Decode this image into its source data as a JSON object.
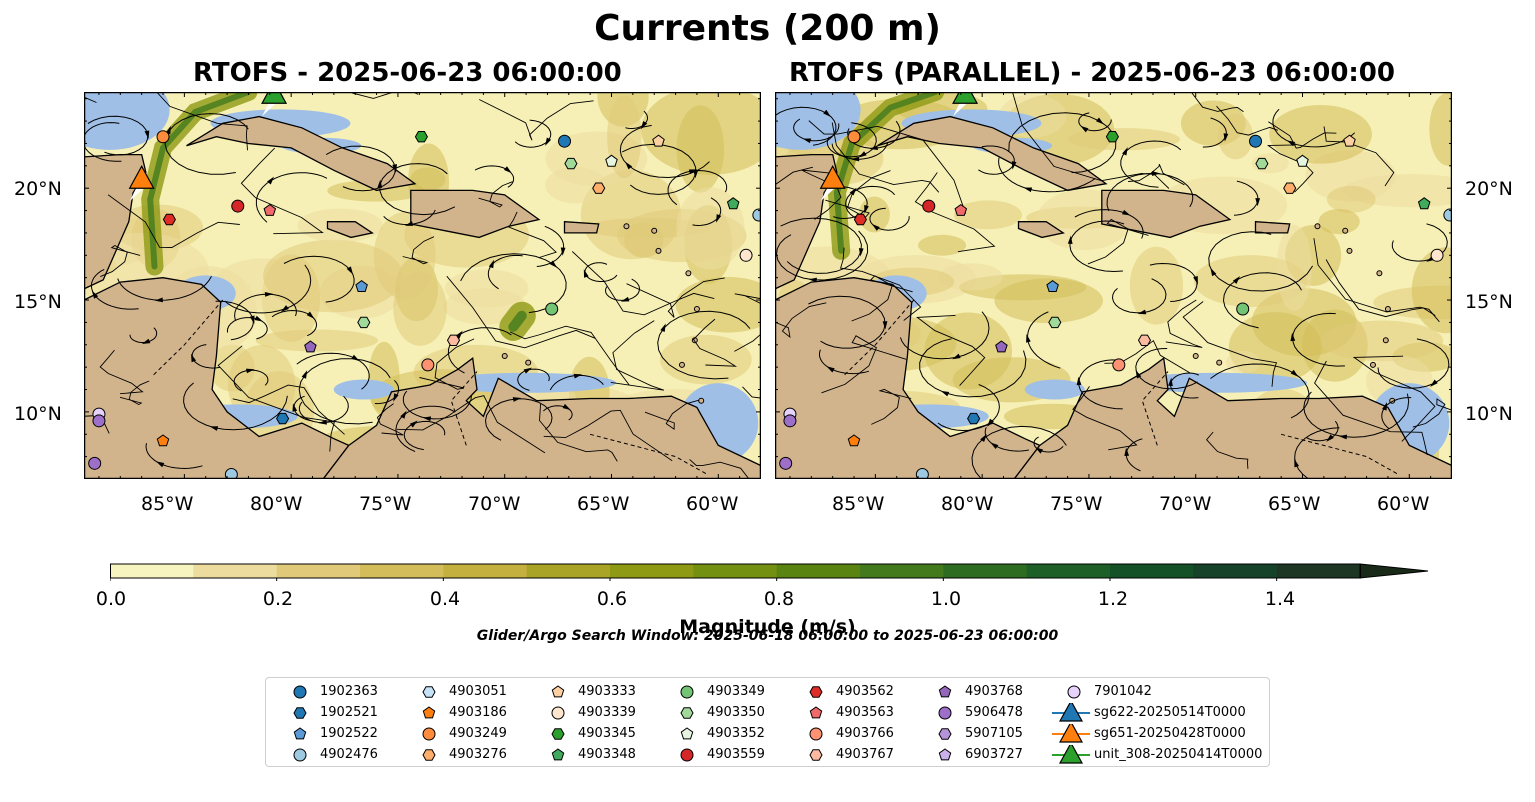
{
  "figure": {
    "title": "Currents (200 m)",
    "panels": [
      {
        "title": "RTOFS - 2025-06-23 06:00:00"
      },
      {
        "title": "RTOFS (PARALLEL) - 2025-06-23 06:00:00"
      }
    ],
    "lon_labels": [
      "85°W",
      "80°W",
      "75°W",
      "70°W",
      "65°W",
      "60°W"
    ],
    "lon_values": [
      -85,
      -80,
      -75,
      -70,
      -65,
      -60
    ],
    "lat_labels": [
      "20°N",
      "15°N",
      "10°N"
    ],
    "lat_values": [
      20,
      15,
      10
    ],
    "extent": {
      "lon": [
        -89.7,
        -58.0
      ],
      "lat": [
        7.0,
        24.3
      ]
    },
    "colors": {
      "land": "#d2b48c",
      "water_shallow": "#9fbfe6",
      "low_speed": "#f6f0b6",
      "high_speed": "#1f6f1f"
    },
    "search_window": "Glider/Argo Search Window: 2025-06-18 06:00:00 to 2025-06-23 06:00:00"
  },
  "colorbar": {
    "label": "Magnitude (m/s)",
    "ticks": [
      "0.0",
      "0.2",
      "0.4",
      "0.6",
      "0.8",
      "1.0",
      "1.2",
      "1.4"
    ],
    "tick_values": [
      0.0,
      0.2,
      0.4,
      0.6,
      0.8,
      1.0,
      1.2,
      1.4
    ],
    "range": [
      0.0,
      1.5
    ],
    "extend": "max",
    "colors": [
      "#f8f4bf",
      "#ecdd9e",
      "#e0ca7a",
      "#d3bd5a",
      "#c3b03f",
      "#a9a326",
      "#8f9a14",
      "#739010",
      "#5a8412",
      "#427a1d",
      "#2e6c22",
      "#1d5f27",
      "#155126",
      "#17422a",
      "#1d3624",
      "#1a2a19"
    ]
  },
  "legend": {
    "items": [
      {
        "label": "1902363",
        "marker": "circle",
        "color": "#1f77b4"
      },
      {
        "label": "1902521",
        "marker": "hexagon",
        "color": "#1f77b4"
      },
      {
        "label": "1902522",
        "marker": "pentagon",
        "color": "#5b9bd5"
      },
      {
        "label": "4902476",
        "marker": "circle",
        "color": "#9ecae1"
      },
      {
        "label": "4903051",
        "marker": "hexagon",
        "color": "#c6e2f7"
      },
      {
        "label": "4903186",
        "marker": "pentagon",
        "color": "#ff7f0e"
      },
      {
        "label": "4903249",
        "marker": "circle",
        "color": "#fd8d3c"
      },
      {
        "label": "4903276",
        "marker": "hexagon",
        "color": "#fdae6b"
      },
      {
        "label": "4903333",
        "marker": "pentagon",
        "color": "#fdd0a2"
      },
      {
        "label": "4903339",
        "marker": "circle",
        "color": "#fee6ce"
      },
      {
        "label": "4903345",
        "marker": "hexagon",
        "color": "#2ca02c"
      },
      {
        "label": "4903348",
        "marker": "pentagon",
        "color": "#41ab5d"
      },
      {
        "label": "4903349",
        "marker": "circle",
        "color": "#74c476"
      },
      {
        "label": "4903350",
        "marker": "hexagon",
        "color": "#a1d99b"
      },
      {
        "label": "4903352",
        "marker": "pentagon",
        "color": "#e5f5e0"
      },
      {
        "label": "4903559",
        "marker": "circle",
        "color": "#d62728"
      },
      {
        "label": "4903562",
        "marker": "hexagon",
        "color": "#de2d26"
      },
      {
        "label": "4903563",
        "marker": "pentagon",
        "color": "#f16a6a"
      },
      {
        "label": "4903766",
        "marker": "circle",
        "color": "#fc9272"
      },
      {
        "label": "4903767",
        "marker": "hexagon",
        "color": "#fcbba1"
      },
      {
        "label": "4903768",
        "marker": "pentagon",
        "color": "#9467bd"
      },
      {
        "label": "5906478",
        "marker": "circle",
        "color": "#9e6fc9"
      },
      {
        "label": "5907105",
        "marker": "hexagon",
        "color": "#b494d8"
      },
      {
        "label": "6903727",
        "marker": "pentagon",
        "color": "#cbb1ea"
      },
      {
        "label": "7901042",
        "marker": "circle",
        "color": "#e6d2fb"
      },
      {
        "label": "sg622-20250514T0000",
        "marker": "triangle",
        "color": "#1f77b4"
      },
      {
        "label": "sg651-20250428T0000",
        "marker": "triangle",
        "color": "#ff7f0e"
      },
      {
        "label": "unit_308-20250414T0000",
        "marker": "triangle",
        "color": "#2ca02c"
      }
    ]
  },
  "floats": [
    {
      "id": "4903249",
      "lon": -86.0,
      "lat": 22.3
    },
    {
      "id": "4903562",
      "lon": -85.7,
      "lat": 18.6
    },
    {
      "id": "4903559",
      "lon": -82.5,
      "lat": 19.2
    },
    {
      "id": "4903563",
      "lon": -81.0,
      "lat": 19.0
    },
    {
      "id": "4903345",
      "lon": -73.9,
      "lat": 22.3
    },
    {
      "id": "1902363",
      "lon": -67.2,
      "lat": 22.1
    },
    {
      "id": "4903350",
      "lon": -66.9,
      "lat": 21.1
    },
    {
      "id": "4903352",
      "lon": -65.0,
      "lat": 21.2
    },
    {
      "id": "4903333",
      "lon": -62.8,
      "lat": 22.1
    },
    {
      "id": "4903276",
      "lon": -65.6,
      "lat": 20.0
    },
    {
      "id": "4903348",
      "lon": -59.3,
      "lat": 19.3
    },
    {
      "id": "4902476",
      "lon": -58.1,
      "lat": 18.8
    },
    {
      "id": "4903339",
      "lon": -58.7,
      "lat": 17.0
    },
    {
      "id": "1902522",
      "lon": -76.7,
      "lat": 15.6
    },
    {
      "id": "4903349",
      "lon": -67.8,
      "lat": 14.6
    },
    {
      "id": "4903350",
      "lon": -76.6,
      "lat": 14.0
    },
    {
      "id": "4903768",
      "lon": -79.1,
      "lat": 12.9
    },
    {
      "id": "4903767",
      "lon": -72.4,
      "lat": 13.2
    },
    {
      "id": "4903766",
      "lon": -73.6,
      "lat": 12.1
    },
    {
      "id": "1902521",
      "lon": -80.4,
      "lat": 9.7
    },
    {
      "id": "7901042",
      "lon": -89.0,
      "lat": 9.9
    },
    {
      "id": "5906478",
      "lon": -89.0,
      "lat": 9.6
    },
    {
      "id": "4903186",
      "lon": -86.0,
      "lat": 8.7
    },
    {
      "id": "5906478",
      "lon": -89.2,
      "lat": 7.7
    },
    {
      "id": "4902476",
      "lon": -82.8,
      "lat": 7.2
    }
  ],
  "gliders": [
    {
      "id": "sg651-20250428T0000",
      "lon": -87.0,
      "lat": 20.4
    },
    {
      "id": "unit_308-20250414T0000",
      "lon": -80.8,
      "lat": 24.2
    }
  ]
}
